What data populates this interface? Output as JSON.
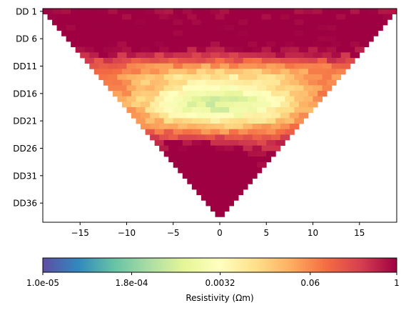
{
  "chart_data": {
    "type": "heatmap",
    "subtype": "dipole-dipole pseudosection",
    "title": "",
    "xlabel": "",
    "ylabel": "",
    "xlim": [
      -19,
      19
    ],
    "x_ticks": [
      -15,
      -10,
      -5,
      0,
      5,
      10,
      15
    ],
    "x_tick_labels": [
      "−15",
      "−10",
      "−5",
      "0",
      "5",
      "10",
      "15"
    ],
    "y_levels": 39,
    "y_ticks": [
      1,
      6,
      11,
      16,
      21,
      26,
      31,
      36
    ],
    "y_tick_labels": [
      "DD 1",
      "DD 6",
      "DD11",
      "DD16",
      "DD21",
      "DD26",
      "DD31",
      "DD36"
    ],
    "pseudosection": {
      "level_1_half_width": 19,
      "half_width_step_per_level": 0.5,
      "description_of_field": "high (~0.3–1 Ωm) at shallow levels and outer edges, low (~1e-4 Ωm) band in center around DD13–DD23, rising again (~0.05–0.2 Ωm) below DD25 near x=-3"
    },
    "colorbar": {
      "colormap": "Spectral_r",
      "scale": "log",
      "range": [
        1e-05,
        1
      ],
      "tick_values": [
        1e-05,
        0.00018,
        0.0032,
        0.06,
        1
      ],
      "tick_labels": [
        "1.0e-05",
        "1.8e-04",
        "0.0032",
        "0.06",
        "1"
      ],
      "label": "Resistivity (Ωm)",
      "orientation": "horizontal",
      "position": "bottom"
    },
    "grid": false,
    "legend": "none"
  }
}
